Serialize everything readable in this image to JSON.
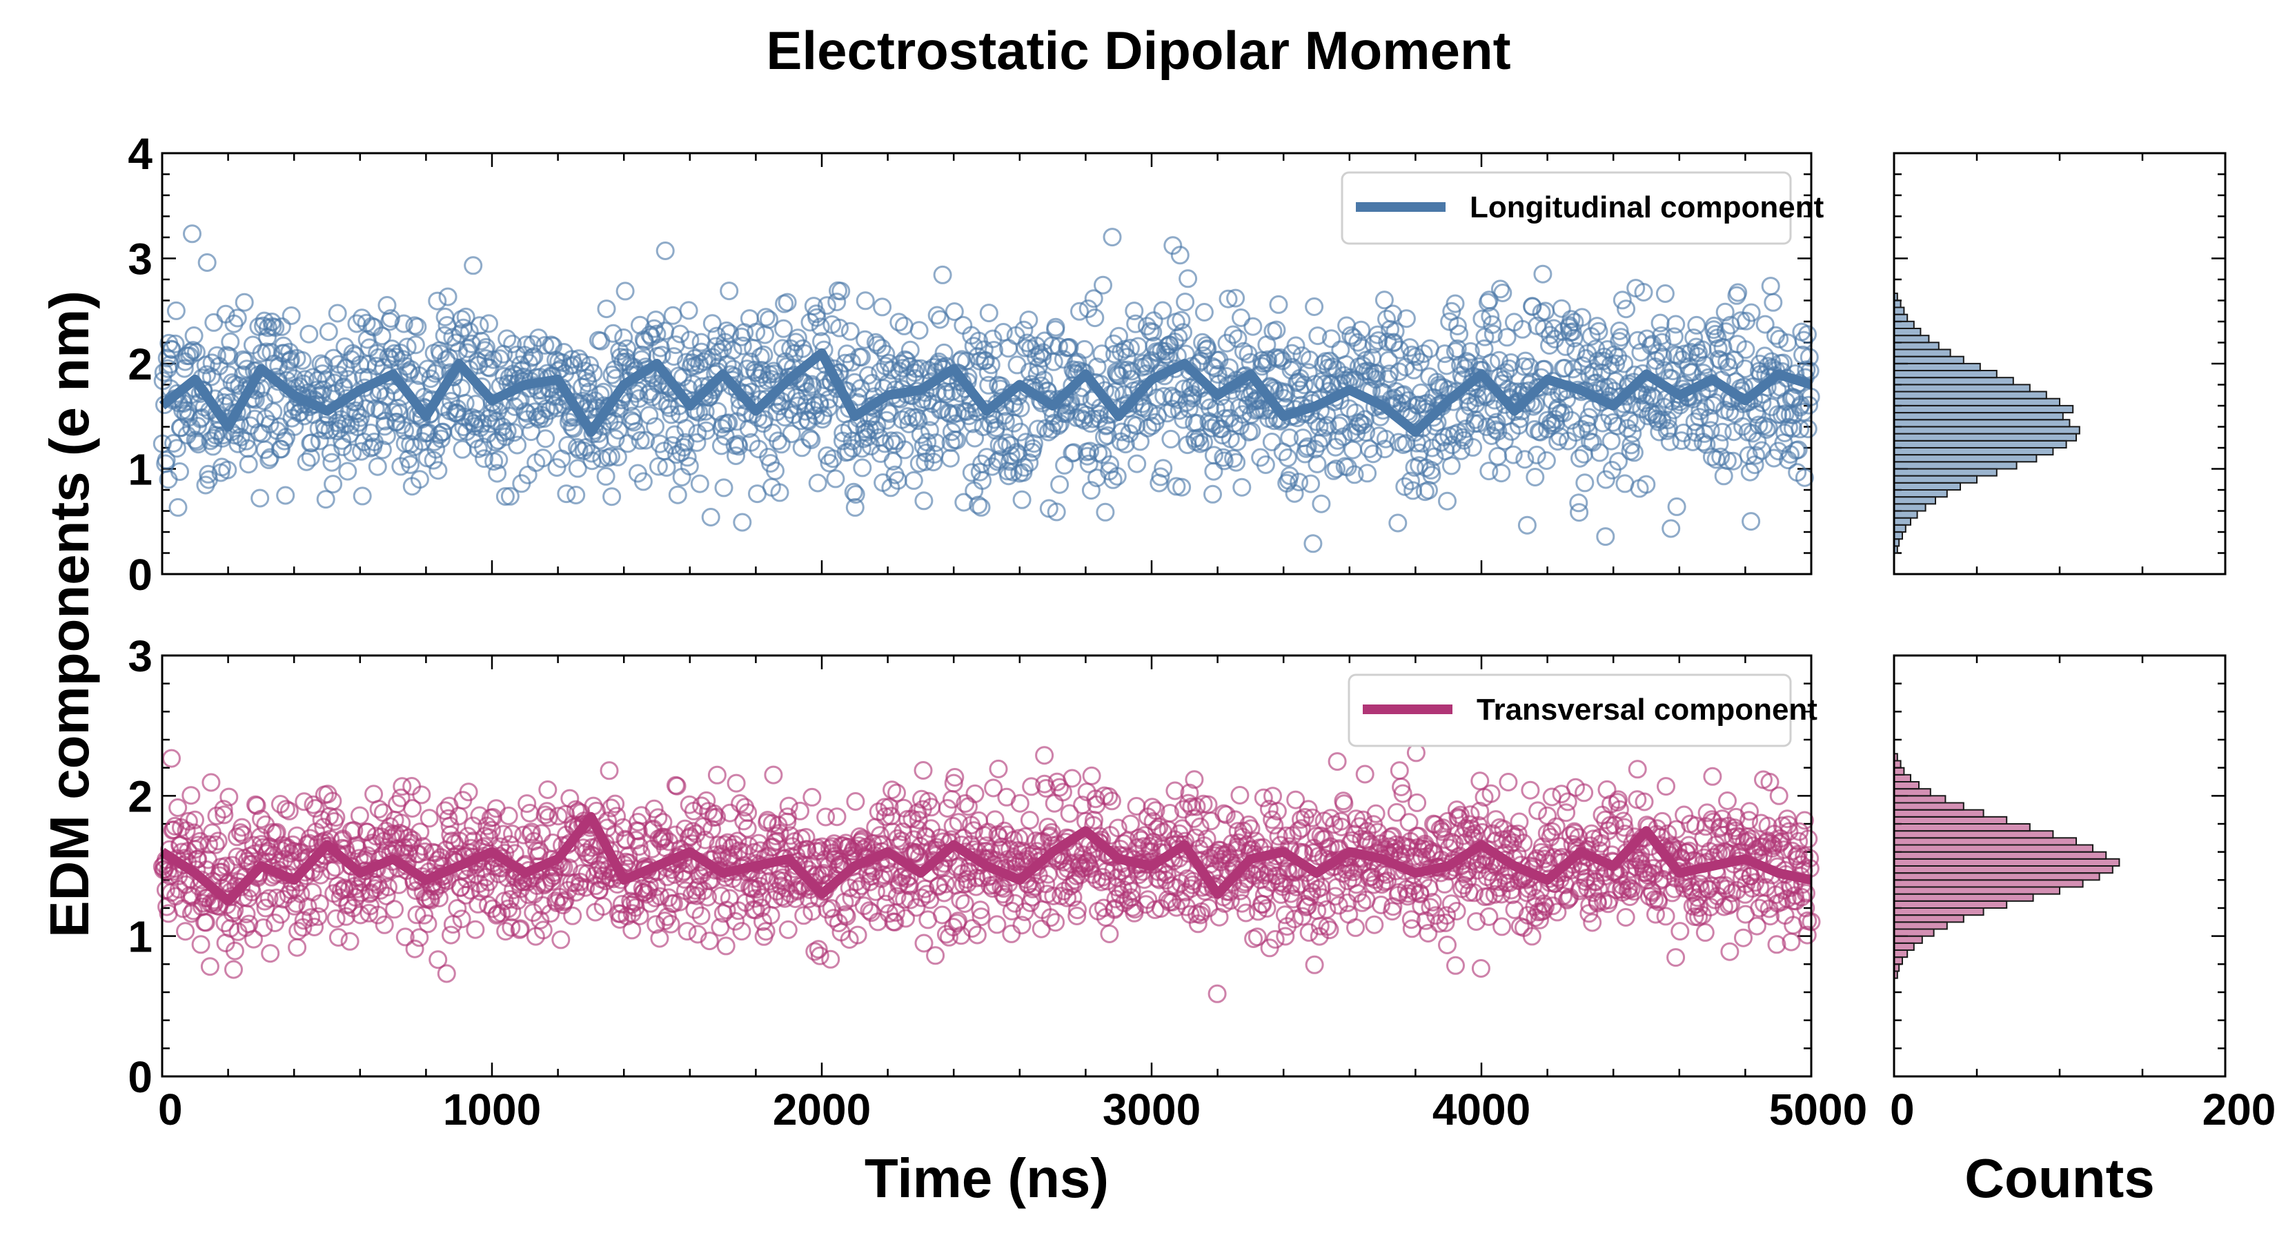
{
  "chart_data": {
    "type": "scatter",
    "title": "Electrostatic Dipolar Moment",
    "xlabel": "Time (ns)",
    "ylabel": "EDM components (e nm)",
    "hist_xlabel": "Counts",
    "x_ticks": [
      "0",
      "1000",
      "2000",
      "3000",
      "4000",
      "5000"
    ],
    "xlim": [
      0,
      5000
    ],
    "hist_x_ticks": [
      "0",
      "200"
    ],
    "hist_xlim": [
      0,
      200
    ],
    "grid": false,
    "panels": [
      {
        "name": "Longitudinal component",
        "color": "#4a78a8",
        "ylim": [
          0,
          4
        ],
        "y_ticks": [
          "0",
          "1",
          "2",
          "3",
          "4"
        ],
        "legend": "top-right",
        "mean": 1.67,
        "scatter_std": 0.42,
        "n_points": 2200,
        "seed": 11,
        "running_mean": {
          "x": [
            0,
            100,
            200,
            300,
            400,
            500,
            600,
            700,
            800,
            900,
            1000,
            1100,
            1200,
            1300,
            1400,
            1500,
            1600,
            1700,
            1800,
            1900,
            2000,
            2100,
            2200,
            2300,
            2400,
            2500,
            2600,
            2700,
            2800,
            2900,
            3000,
            3100,
            3200,
            3300,
            3400,
            3500,
            3600,
            3700,
            3800,
            3900,
            4000,
            4100,
            4200,
            4300,
            4400,
            4500,
            4600,
            4700,
            4800,
            4900,
            5000
          ],
          "y": [
            1.6,
            1.85,
            1.4,
            1.95,
            1.7,
            1.55,
            1.75,
            1.9,
            1.5,
            2.0,
            1.65,
            1.8,
            1.85,
            1.35,
            1.8,
            2.0,
            1.6,
            1.9,
            1.55,
            1.85,
            2.1,
            1.5,
            1.7,
            1.75,
            1.95,
            1.55,
            1.8,
            1.6,
            1.9,
            1.5,
            1.85,
            2.0,
            1.7,
            1.9,
            1.5,
            1.6,
            1.75,
            1.6,
            1.35,
            1.65,
            1.9,
            1.55,
            1.85,
            1.75,
            1.6,
            1.9,
            1.7,
            1.85,
            1.65,
            1.9,
            1.8
          ]
        },
        "histogram": {
          "bin_start": 0.2,
          "bin_width": 0.0667,
          "counts": [
            2,
            3,
            5,
            7,
            10,
            14,
            19,
            25,
            32,
            40,
            50,
            62,
            74,
            86,
            96,
            104,
            110,
            112,
            106,
            102,
            108,
            100,
            92,
            82,
            72,
            62,
            52,
            42,
            34,
            27,
            21,
            16,
            12,
            8,
            6,
            4,
            2
          ]
        }
      },
      {
        "name": "Transversal component",
        "color": "#b03576",
        "ylim": [
          0,
          3
        ],
        "y_ticks": [
          "0",
          "1",
          "2",
          "3"
        ],
        "legend": "top-right",
        "mean": 1.5,
        "scatter_std": 0.25,
        "n_points": 2200,
        "seed": 29,
        "running_mean": {
          "x": [
            0,
            100,
            200,
            300,
            400,
            500,
            600,
            700,
            800,
            900,
            1000,
            1100,
            1200,
            1300,
            1400,
            1500,
            1600,
            1700,
            1800,
            1900,
            2000,
            2100,
            2200,
            2300,
            2400,
            2500,
            2600,
            2700,
            2800,
            2900,
            3000,
            3100,
            3200,
            3300,
            3400,
            3500,
            3600,
            3700,
            3800,
            3900,
            4000,
            4100,
            4200,
            4300,
            4400,
            4500,
            4600,
            4700,
            4800,
            4900,
            5000
          ],
          "y": [
            1.6,
            1.45,
            1.25,
            1.5,
            1.4,
            1.65,
            1.45,
            1.55,
            1.4,
            1.5,
            1.6,
            1.45,
            1.55,
            1.85,
            1.4,
            1.5,
            1.6,
            1.45,
            1.5,
            1.55,
            1.3,
            1.5,
            1.6,
            1.45,
            1.65,
            1.5,
            1.4,
            1.6,
            1.75,
            1.55,
            1.5,
            1.65,
            1.3,
            1.55,
            1.6,
            1.45,
            1.6,
            1.55,
            1.45,
            1.5,
            1.65,
            1.5,
            1.4,
            1.6,
            1.5,
            1.75,
            1.45,
            1.5,
            1.55,
            1.45,
            1.4
          ]
        },
        "histogram": {
          "bin_start": 0.7,
          "bin_width": 0.05,
          "counts": [
            2,
            3,
            5,
            8,
            12,
            17,
            24,
            32,
            42,
            54,
            68,
            84,
            100,
            114,
            124,
            132,
            136,
            128,
            120,
            110,
            96,
            82,
            68,
            54,
            42,
            31,
            22,
            15,
            10,
            6,
            4,
            2
          ]
        }
      }
    ]
  }
}
